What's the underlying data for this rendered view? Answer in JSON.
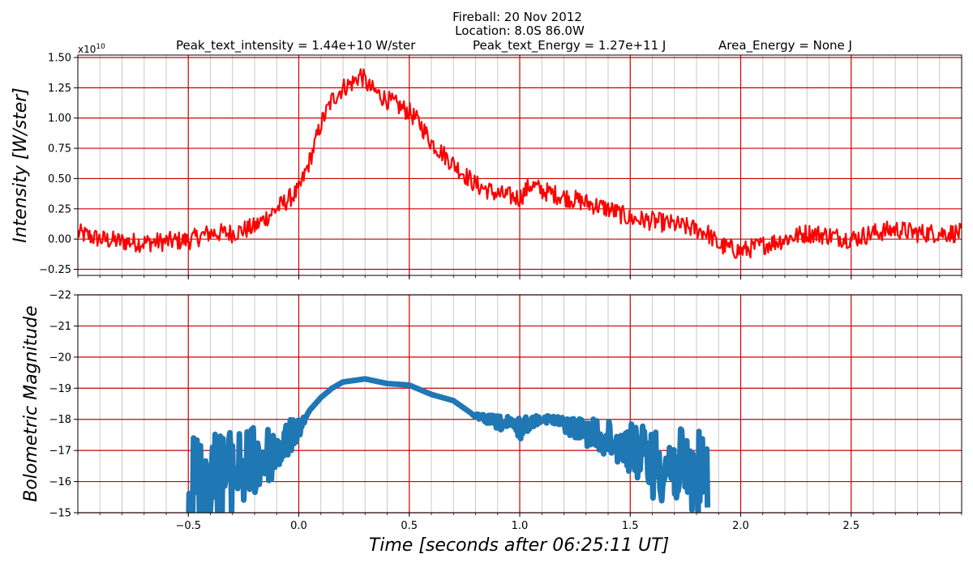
{
  "title": {
    "line1": "Fireball: 20 Nov 2012",
    "line2": "Location: 8.0S  86.0W",
    "line3_parts": [
      "Peak_text_intensity = 1.44e+10 W/ster",
      "Peak_text_Energy = 1.27e+11 J",
      "Area_Energy = None J"
    ]
  },
  "xlabel": "Time [seconds after 06:25:11 UT]",
  "colors": {
    "intensity_line": "#ff0000",
    "magnitude_line": "#1f77b4",
    "major_grid": "#cc0000",
    "minor_grid": "#c8c8c8"
  },
  "chart_data": [
    {
      "type": "line",
      "ylabel": "Intensity [W/ster]",
      "y_multiplier_label": "x10",
      "y_multiplier_exponent": "10",
      "xlim": [
        -1.0,
        3.0
      ],
      "ylim": [
        -0.3,
        1.52
      ],
      "x_ticks": [
        -0.5,
        0.0,
        0.5,
        1.0,
        1.5,
        2.0,
        2.5
      ],
      "x_tick_labels": [
        "−0.5",
        "0.0",
        "0.5",
        "1.0",
        "1.5",
        "2.0",
        "2.5"
      ],
      "y_ticks": [
        -0.25,
        0.0,
        0.25,
        0.5,
        0.75,
        1.0,
        1.25,
        1.5
      ],
      "y_tick_labels": [
        "−0.25",
        "0.00",
        "0.25",
        "0.50",
        "0.75",
        "1.00",
        "1.25",
        "1.50"
      ],
      "grid": true,
      "series": [
        {
          "x": [
            -1.0,
            -0.9,
            -0.8,
            -0.7,
            -0.6,
            -0.5,
            -0.4,
            -0.3,
            -0.2,
            -0.1,
            0.0,
            0.05,
            0.1,
            0.15,
            0.2,
            0.25,
            0.28,
            0.32,
            0.4,
            0.5,
            0.55,
            0.6,
            0.7,
            0.8,
            0.9,
            1.0,
            1.05,
            1.1,
            1.2,
            1.3,
            1.4,
            1.5,
            1.6,
            1.7,
            1.8,
            1.85,
            1.9,
            2.0,
            2.1,
            2.2,
            2.3,
            2.4,
            2.5,
            2.6,
            2.7,
            2.8,
            2.9,
            3.0
          ],
          "values": [
            0.05,
            0.0,
            -0.02,
            -0.03,
            -0.02,
            -0.01,
            0.05,
            0.05,
            0.1,
            0.25,
            0.4,
            0.65,
            0.95,
            1.15,
            1.25,
            1.3,
            1.36,
            1.25,
            1.15,
            1.05,
            0.95,
            0.8,
            0.62,
            0.45,
            0.37,
            0.34,
            0.45,
            0.4,
            0.35,
            0.3,
            0.25,
            0.17,
            0.15,
            0.12,
            0.08,
            0.05,
            -0.05,
            -0.1,
            -0.05,
            0.0,
            0.05,
            0.03,
            0.0,
            0.05,
            0.08,
            0.05,
            0.05,
            0.05
          ]
        }
      ]
    },
    {
      "type": "line",
      "ylabel": "Bolometric Magnitude",
      "xlim": [
        -1.0,
        3.0
      ],
      "ylim": [
        -22,
        -15
      ],
      "y_inverted": true,
      "x_ticks": [
        -0.5,
        0.0,
        0.5,
        1.0,
        1.5,
        2.0,
        2.5
      ],
      "x_tick_labels": [
        "−0.5",
        "0.0",
        "0.5",
        "1.0",
        "1.5",
        "2.0",
        "2.5"
      ],
      "y_ticks": [
        -22,
        -21,
        -20,
        -19,
        -18,
        -17,
        -16,
        -15
      ],
      "y_tick_labels": [
        "−22",
        "−21",
        "−20",
        "−19",
        "−18",
        "−17",
        "−16",
        "−15"
      ],
      "grid": true,
      "series": [
        {
          "x": [
            -0.5,
            -0.4,
            -0.3,
            -0.2,
            -0.1,
            0.0,
            0.05,
            0.1,
            0.15,
            0.2,
            0.25,
            0.3,
            0.4,
            0.5,
            0.6,
            0.7,
            0.8,
            0.9,
            1.0,
            1.05,
            1.1,
            1.2,
            1.3,
            1.4,
            1.5,
            1.6,
            1.7,
            1.8,
            1.85
          ],
          "values": [
            -15.9,
            -16.2,
            -16.3,
            -16.6,
            -17.0,
            -17.7,
            -18.3,
            -18.7,
            -19.0,
            -19.2,
            -19.25,
            -19.3,
            -19.15,
            -19.1,
            -18.8,
            -18.6,
            -18.1,
            -17.9,
            -17.7,
            -17.9,
            -18.05,
            -17.85,
            -17.6,
            -17.3,
            -17.1,
            -16.6,
            -16.5,
            -16.2,
            -16.0
          ]
        }
      ]
    }
  ]
}
